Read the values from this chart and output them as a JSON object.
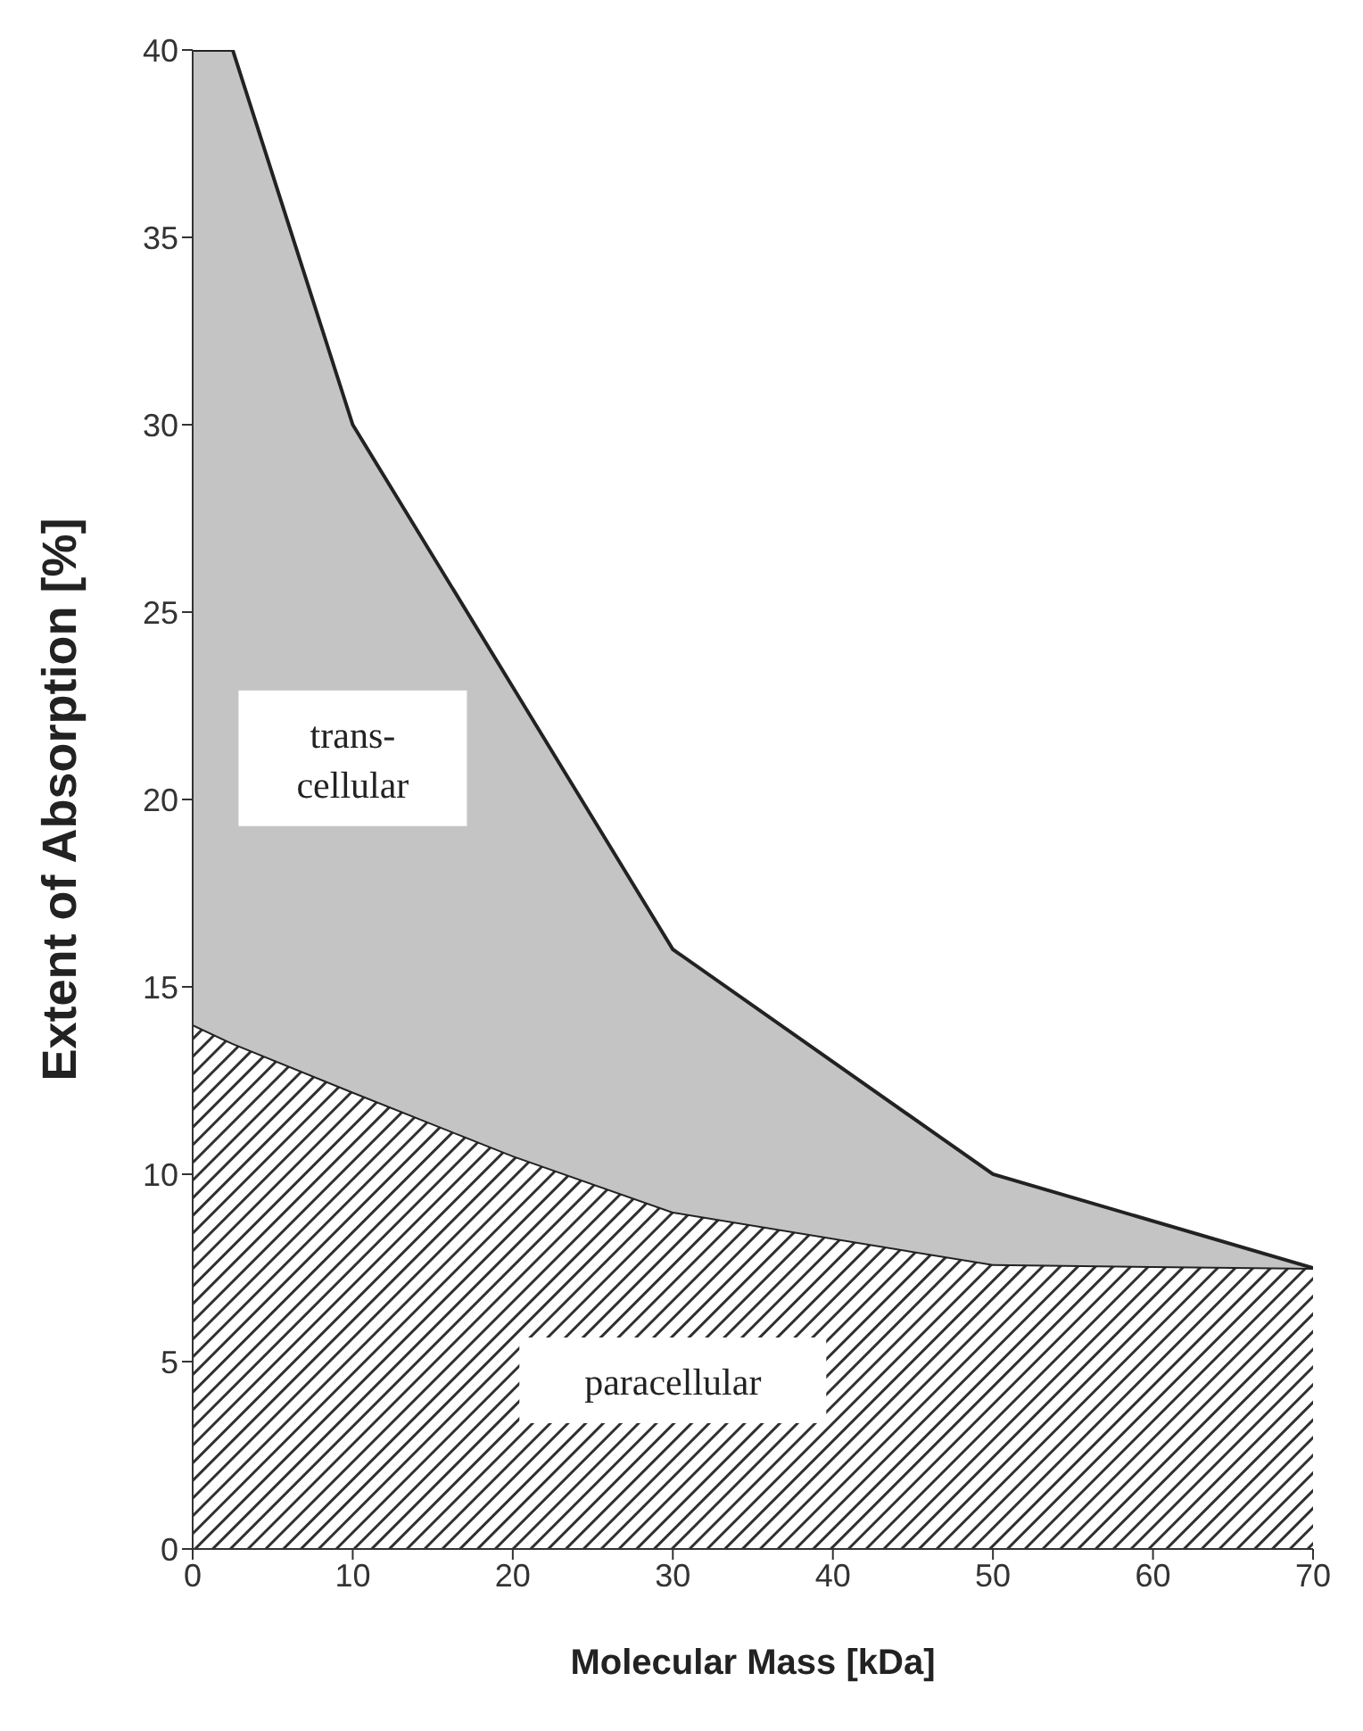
{
  "chart_data": {
    "type": "area",
    "stacked": true,
    "xlabel": "Molecular Mass [kDa]",
    "ylabel": "Extent of Absorption [%]",
    "x": [
      0,
      2.5,
      10,
      20,
      30,
      50,
      70
    ],
    "series": [
      {
        "name": "paracellular",
        "color": "#303030",
        "values": [
          14,
          13.5,
          12.2,
          10.5,
          9,
          7.6,
          7.5
        ]
      },
      {
        "name": "trans-\ncellular",
        "color": "#c4c4c4",
        "values": [
          26,
          26.5,
          17.8,
          12.5,
          7,
          2.4,
          0
        ]
      }
    ],
    "xlim": [
      0,
      70
    ],
    "xticks": [
      0,
      10,
      20,
      30,
      40,
      50,
      60,
      70
    ],
    "ylim": [
      0,
      40
    ],
    "yticks": [
      0,
      5,
      10,
      15,
      20,
      25,
      30,
      35,
      40
    ],
    "grid": false,
    "legend": false
  }
}
